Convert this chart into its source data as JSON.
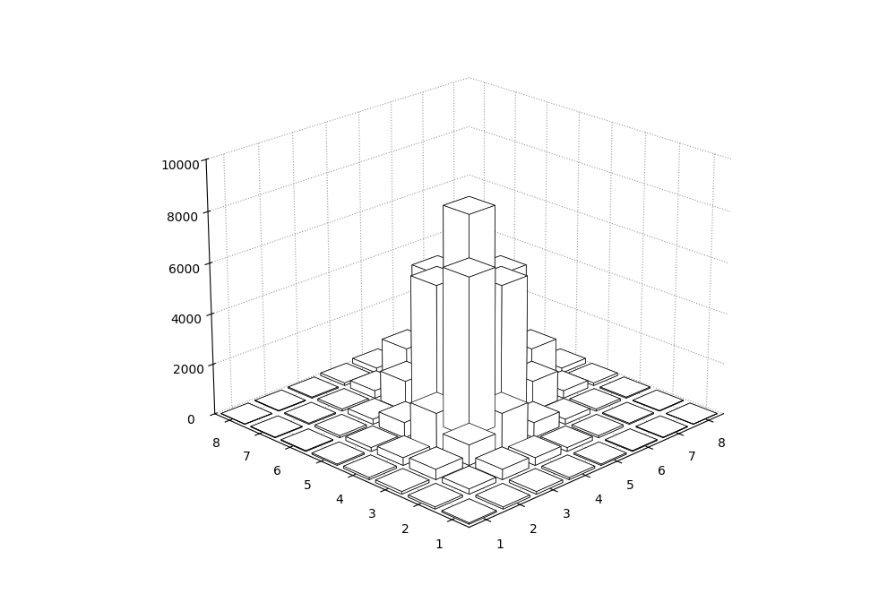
{
  "z_data": [
    [
      50,
      80,
      100,
      80,
      50,
      30,
      20,
      10
    ],
    [
      80,
      200,
      400,
      300,
      150,
      80,
      40,
      20
    ],
    [
      100,
      400,
      800,
      1500,
      600,
      200,
      80,
      40
    ],
    [
      80,
      300,
      1500,
      6300,
      5500,
      1200,
      300,
      100
    ],
    [
      50,
      150,
      600,
      5500,
      7800,
      5000,
      1500,
      200
    ],
    [
      30,
      80,
      200,
      1200,
      5000,
      2000,
      600,
      100
    ],
    [
      20,
      40,
      80,
      300,
      1500,
      600,
      200,
      80
    ],
    [
      10,
      20,
      40,
      100,
      200,
      100,
      80,
      30
    ]
  ],
  "zlim": [
    0,
    10000
  ],
  "zticks": [
    0,
    2000,
    4000,
    6000,
    8000,
    10000
  ],
  "xticks": [
    1,
    2,
    3,
    4,
    5,
    6,
    7,
    8
  ],
  "yticks": [
    1,
    2,
    3,
    4,
    5,
    6,
    7,
    8
  ],
  "bar_color": "#ffffff",
  "edge_color": "#000000",
  "background_color": "#ffffff",
  "grid_color": "#999999",
  "elev": 22,
  "azim": -135,
  "figwidth": 10.0,
  "figheight": 6.82,
  "dpi": 100
}
